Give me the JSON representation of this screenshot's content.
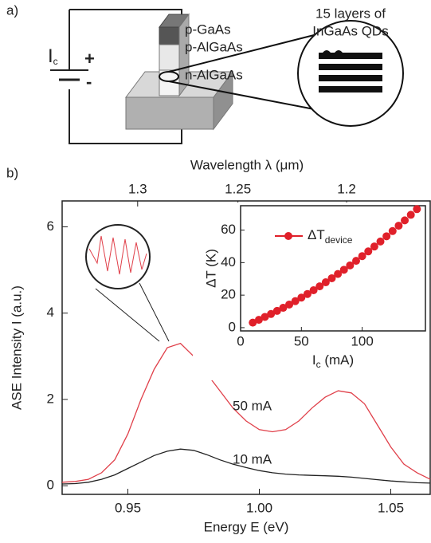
{
  "panel_a": {
    "label": "a)",
    "source": {
      "main": "I",
      "sub": "c"
    },
    "plus": "+",
    "minus": "-",
    "layers": [
      "p-GaAs",
      "p-AlGaAs",
      "n-AlGaAs"
    ],
    "zoom_label": [
      "15 layers of",
      "InGaAs QDs"
    ]
  },
  "chart_data": {
    "type": "line",
    "panel_label": "b)",
    "x_label": "Energy E (eV)",
    "y_label": "ASE Intensity I (a.u.)",
    "x2_label": "Wavelength λ (μm)",
    "x": [
      0.925,
      0.93,
      0.935,
      0.94,
      0.945,
      0.95,
      0.955,
      0.96,
      0.965,
      0.97,
      0.975,
      0.98,
      0.985,
      0.99,
      0.995,
      1.0,
      1.005,
      1.01,
      1.015,
      1.02,
      1.025,
      1.03,
      1.035,
      1.04,
      1.045,
      1.05,
      1.055,
      1.06,
      1.065
    ],
    "series": [
      {
        "name": "50 mA",
        "color": "#e0404a",
        "values": [
          0.08,
          0.1,
          0.15,
          0.3,
          0.6,
          1.2,
          2.0,
          2.7,
          3.2,
          3.3,
          3.0,
          2.6,
          2.2,
          1.8,
          1.5,
          1.3,
          1.25,
          1.3,
          1.5,
          1.8,
          2.05,
          2.2,
          2.15,
          1.9,
          1.4,
          0.9,
          0.5,
          0.3,
          0.15
        ]
      },
      {
        "name": "10 mA",
        "color": "#222222",
        "values": [
          0.04,
          0.05,
          0.08,
          0.15,
          0.25,
          0.4,
          0.55,
          0.7,
          0.8,
          0.85,
          0.82,
          0.72,
          0.6,
          0.5,
          0.42,
          0.35,
          0.3,
          0.27,
          0.25,
          0.24,
          0.23,
          0.22,
          0.2,
          0.17,
          0.14,
          0.11,
          0.09,
          0.07,
          0.06
        ]
      }
    ],
    "xlim": [
      0.925,
      1.065
    ],
    "ylim": [
      -0.2,
      6.6
    ],
    "xticks": [
      0.95,
      {
        "value": 1.0,
        "label": "1.00"
      },
      1.05
    ],
    "yticks": [
      0,
      2,
      4,
      6
    ],
    "x2ticks": [
      1.3,
      1.25,
      1.2
    ],
    "inset": {
      "type": "scatter",
      "x_label": {
        "main": "I",
        "sub": "c",
        "unit": " (mA)"
      },
      "y_label": "ΔT (K)",
      "xlim": [
        0,
        152
      ],
      "ylim": [
        -2,
        75
      ],
      "xticks": [
        0,
        50,
        100
      ],
      "yticks": [
        0,
        20,
        40,
        60
      ],
      "series": [
        {
          "name": {
            "main": "ΔT",
            "sub": "device"
          },
          "color": "#e0202a",
          "x": [
            10,
            15,
            20,
            25,
            30,
            35,
            40,
            45,
            50,
            55,
            60,
            65,
            70,
            75,
            80,
            85,
            90,
            95,
            100,
            105,
            110,
            115,
            120,
            125,
            130,
            135,
            140,
            145
          ],
          "values": [
            3.1,
            4.8,
            6.6,
            8.4,
            10.3,
            12.2,
            14.2,
            16.3,
            18.5,
            20.7,
            23.0,
            25.4,
            27.9,
            30.4,
            33.0,
            35.6,
            38.3,
            41.1,
            44.0,
            46.9,
            49.9,
            53.0,
            56.2,
            59.4,
            62.7,
            66.0,
            69.4,
            72.9
          ]
        }
      ]
    }
  }
}
